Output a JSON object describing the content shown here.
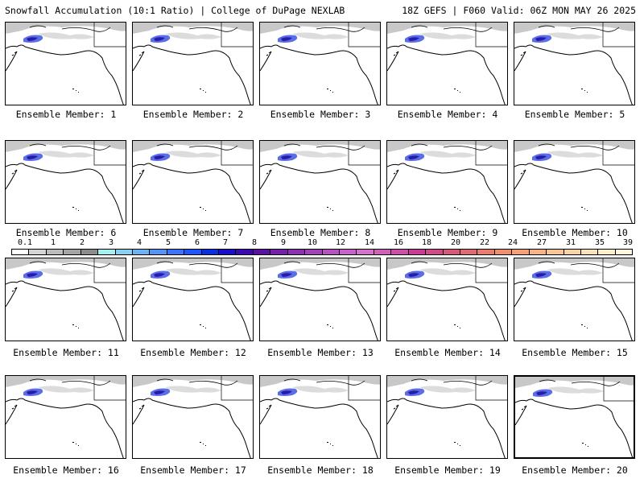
{
  "header": {
    "left_title": "Snowfall Accumulation (10:1 Ratio) | College of DuPage NEXLAB",
    "right_title": "18Z GEFS | F060 Valid: 06Z MON MAY 26 2025"
  },
  "colorbar": {
    "ticks": [
      "0.1",
      "1",
      "2",
      "3",
      "4",
      "5",
      "6",
      "7",
      "8",
      "9",
      "10",
      "12",
      "14",
      "16",
      "18",
      "20",
      "22",
      "24",
      "27",
      "31",
      "35",
      "39"
    ],
    "colors": [
      "#ffffff",
      "#d4d4d4",
      "#bcbcbc",
      "#a4a4a4",
      "#8c8c8c",
      "#a6eef0",
      "#8ad0f0",
      "#6fb2f2",
      "#5593f4",
      "#3b74f6",
      "#2055f8",
      "#0a2ee0",
      "#1a0ec8",
      "#3a0ab0",
      "#5a12a0",
      "#7222a8",
      "#8a32b0",
      "#a042b8",
      "#b452c0",
      "#c662c8",
      "#d472c8",
      "#d060b8",
      "#cc4ea8",
      "#c83c98",
      "#d04a88",
      "#d85878",
      "#e06a72",
      "#e87c70",
      "#f08e70",
      "#f4a078",
      "#f6b288",
      "#f8c498",
      "#fad4a8",
      "#fce2b8",
      "#feeeca",
      "#fff6de"
    ]
  },
  "members": [
    {
      "label": "Ensemble Member: 1"
    },
    {
      "label": "Ensemble Member: 2"
    },
    {
      "label": "Ensemble Member: 3"
    },
    {
      "label": "Ensemble Member: 4"
    },
    {
      "label": "Ensemble Member: 5"
    },
    {
      "label": "Ensemble Member: 6"
    },
    {
      "label": "Ensemble Member: 7"
    },
    {
      "label": "Ensemble Member: 8"
    },
    {
      "label": "Ensemble Member: 9"
    },
    {
      "label": "Ensemble Member: 10"
    },
    {
      "label": "Ensemble Member: 11"
    },
    {
      "label": "Ensemble Member: 12"
    },
    {
      "label": "Ensemble Member: 13"
    },
    {
      "label": "Ensemble Member: 14"
    },
    {
      "label": "Ensemble Member: 15"
    },
    {
      "label": "Ensemble Member: 16"
    },
    {
      "label": "Ensemble Member: 17"
    },
    {
      "label": "Ensemble Member: 18"
    },
    {
      "label": "Ensemble Member: 19"
    },
    {
      "label": "Ensemble Member: 20"
    }
  ]
}
